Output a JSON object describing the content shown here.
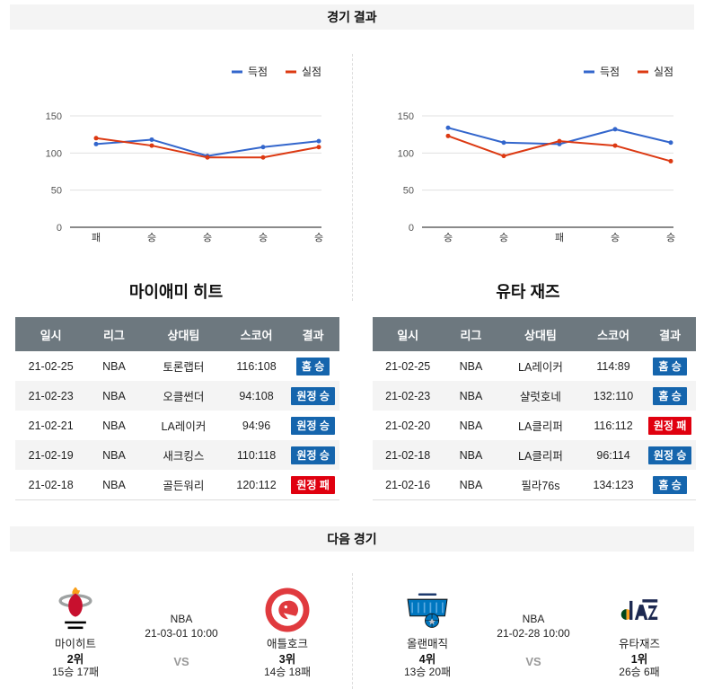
{
  "sections": {
    "results_title": "경기 결과",
    "next_title": "다음 경기"
  },
  "colors": {
    "scored_line": "#3366cc",
    "allowed_line": "#dc3912",
    "win_badge": "#1565ad",
    "loss_badge": "#ea0a17",
    "table_header_bg": "#6d757d"
  },
  "chart_data": [
    {
      "type": "line",
      "categories": [
        "패",
        "승",
        "승",
        "승",
        "승"
      ],
      "series": [
        {
          "name": "득점",
          "color": "#3366cc",
          "values": [
            112,
            118,
            96,
            108,
            116
          ]
        },
        {
          "name": "실점",
          "color": "#dc3912",
          "values": [
            120,
            110,
            94,
            94,
            108
          ]
        }
      ],
      "yticks": [
        0,
        50,
        100,
        150
      ],
      "ylim": [
        0,
        165
      ],
      "grid": true,
      "legend_position": "top-right"
    },
    {
      "type": "line",
      "categories": [
        "승",
        "승",
        "패",
        "승",
        "승"
      ],
      "series": [
        {
          "name": "득점",
          "color": "#3366cc",
          "values": [
            134,
            114,
            112,
            132,
            114
          ]
        },
        {
          "name": "실점",
          "color": "#dc3912",
          "values": [
            123,
            96,
            116,
            110,
            89
          ]
        }
      ],
      "yticks": [
        0,
        50,
        100,
        150
      ],
      "ylim": [
        0,
        165
      ],
      "grid": true,
      "legend_position": "top-right"
    }
  ],
  "teams": [
    {
      "name": "마이애미 히트",
      "table": {
        "headers": [
          "일시",
          "리그",
          "상대팀",
          "스코어",
          "결과"
        ],
        "rows": [
          {
            "date": "21-02-25",
            "league": "NBA",
            "opponent": "토론랩터",
            "score": "116:108",
            "result": {
              "label": "홈 승",
              "win": true
            }
          },
          {
            "date": "21-02-23",
            "league": "NBA",
            "opponent": "오클썬더",
            "score": "94:108",
            "result": {
              "label": "원정 승",
              "win": true
            }
          },
          {
            "date": "21-02-21",
            "league": "NBA",
            "opponent": "LA레이커",
            "score": "94:96",
            "result": {
              "label": "원정 승",
              "win": true
            }
          },
          {
            "date": "21-02-19",
            "league": "NBA",
            "opponent": "새크킹스",
            "score": "110:118",
            "result": {
              "label": "원정 승",
              "win": true
            }
          },
          {
            "date": "21-02-18",
            "league": "NBA",
            "opponent": "골든워리",
            "score": "120:112",
            "result": {
              "label": "원정 패",
              "win": false
            }
          }
        ]
      }
    },
    {
      "name": "유타 재즈",
      "table": {
        "headers": [
          "일시",
          "리그",
          "상대팀",
          "스코어",
          "결과"
        ],
        "rows": [
          {
            "date": "21-02-25",
            "league": "NBA",
            "opponent": "LA레이커",
            "score": "114:89",
            "result": {
              "label": "홈 승",
              "win": true
            }
          },
          {
            "date": "21-02-23",
            "league": "NBA",
            "opponent": "샬럿호네",
            "score": "132:110",
            "result": {
              "label": "홈 승",
              "win": true
            }
          },
          {
            "date": "21-02-20",
            "league": "NBA",
            "opponent": "LA클리퍼",
            "score": "116:112",
            "result": {
              "label": "원정 패",
              "win": false
            }
          },
          {
            "date": "21-02-18",
            "league": "NBA",
            "opponent": "LA클리퍼",
            "score": "96:114",
            "result": {
              "label": "원정 승",
              "win": true
            }
          },
          {
            "date": "21-02-16",
            "league": "NBA",
            "opponent": "필라76s",
            "score": "134:123",
            "result": {
              "label": "홈 승",
              "win": true
            }
          }
        ]
      }
    }
  ],
  "next_games": [
    {
      "league": "NBA",
      "datetime": "21-03-01 10:00",
      "vs": "VS",
      "home": {
        "name": "마이히트",
        "rank": "2위",
        "record": "15승 17패",
        "logo": "miami-heat-logo"
      },
      "away": {
        "name": "애틀호크",
        "rank": "3위",
        "record": "14승 18패",
        "logo": "atlanta-hawks-logo"
      }
    },
    {
      "league": "NBA",
      "datetime": "21-02-28 10:00",
      "vs": "VS",
      "home": {
        "name": "올랜매직",
        "rank": "4위",
        "record": "13승 20패",
        "logo": "orlando-magic-logo"
      },
      "away": {
        "name": "유타재즈",
        "rank": "1위",
        "record": "26승 6패",
        "logo": "utah-jazz-logo"
      }
    }
  ]
}
